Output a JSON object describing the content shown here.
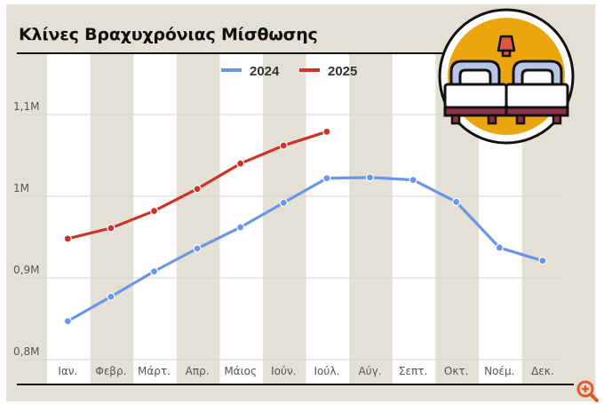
{
  "title": "Κλίνες Βραχυχρόνιας Μίσθωσης",
  "legend": [
    {
      "label": "2024",
      "color": "#6a96e6"
    },
    {
      "label": "2025",
      "color": "#cc3328"
    }
  ],
  "colors": {
    "frame_bg": "#e4e0d6",
    "stripe_light": "#ffffff",
    "stripe_dark": "#e4e0d6",
    "icon_fill": "#eba60f",
    "zoom_icon": "#e8562a"
  },
  "icon": "twin-beds-icon",
  "zoom_button": "zoom-in-icon",
  "chart_data": {
    "type": "line",
    "title": "Κλίνες Βραχυχρόνιας Μίσθωσης",
    "xlabel": "",
    "ylabel": "",
    "categories": [
      "Ιαν.",
      "Φεβρ.",
      "Μάρτ.",
      "Απρ.",
      "Μάιος",
      "Ιούν.",
      "Ιούλ.",
      "Αύγ.",
      "Σεπτ.",
      "Οκτ.",
      "Νοέμ.",
      "Δεκ."
    ],
    "series": [
      {
        "name": "2024",
        "color": "#6a96e6",
        "values": [
          847000,
          877000,
          908000,
          936000,
          962000,
          992000,
          1022000,
          1023000,
          1020000,
          993000,
          937000,
          921000
        ]
      },
      {
        "name": "2025",
        "color": "#cc3328",
        "values": [
          948000,
          961000,
          982000,
          1009000,
          1040000,
          1062000,
          1079000,
          null,
          null,
          null,
          null,
          null
        ]
      }
    ],
    "yticks": [
      800000,
      900000,
      1000000,
      1100000
    ],
    "ytick_labels": [
      "0,8M",
      "0,9M",
      "1M",
      "1,1M"
    ],
    "ylim": [
      800000,
      1100000
    ],
    "grid": true,
    "legend_position": "top"
  }
}
